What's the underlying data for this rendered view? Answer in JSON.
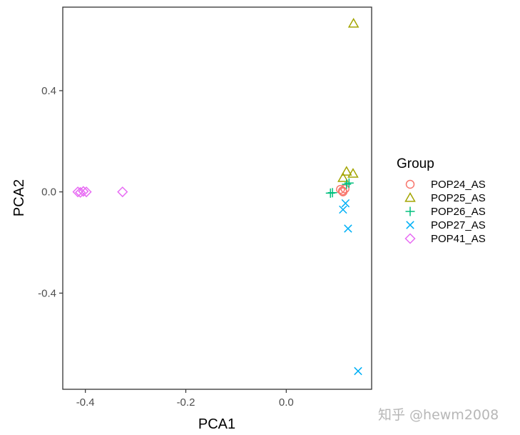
{
  "chart_data": {
    "type": "scatter",
    "xlabel": "PCA1",
    "ylabel": "PCA2",
    "xlim": [
      -0.445,
      0.17
    ],
    "ylim": [
      -0.78,
      0.73
    ],
    "xticks": [
      -0.4,
      -0.2,
      0.0
    ],
    "xtick_labels": [
      "-0.4",
      "-0.2",
      "0.0"
    ],
    "yticks": [
      -0.4,
      0.0,
      0.4
    ],
    "ytick_labels": [
      "-0.4",
      "0.0",
      "0.4"
    ],
    "grid": false,
    "legend": {
      "title": "Group",
      "placement": "right"
    },
    "series": [
      {
        "name": "POP24_AS",
        "shape": "circle",
        "color": "#F8766D",
        "points": [
          [
            0.108,
            0.01
          ],
          [
            0.112,
            0.004
          ],
          [
            0.117,
            0.012
          ],
          [
            0.113,
            0.0
          ]
        ]
      },
      {
        "name": "POP25_AS",
        "shape": "triangle",
        "color": "#A3A500",
        "points": [
          [
            0.134,
            0.665
          ],
          [
            0.12,
            0.08
          ],
          [
            0.133,
            0.072
          ],
          [
            0.113,
            0.055
          ]
        ]
      },
      {
        "name": "POP26_AS",
        "shape": "plus",
        "color": "#00BF7D",
        "points": [
          [
            0.088,
            -0.005
          ],
          [
            0.092,
            -0.003
          ],
          [
            0.12,
            0.03
          ],
          [
            0.125,
            0.035
          ]
        ]
      },
      {
        "name": "POP27_AS",
        "shape": "cross",
        "color": "#00B0F6",
        "points": [
          [
            0.143,
            -0.708
          ],
          [
            0.123,
            -0.145
          ],
          [
            0.113,
            -0.07
          ],
          [
            0.118,
            -0.045
          ]
        ]
      },
      {
        "name": "POP41_AS",
        "shape": "diamond",
        "color": "#E76BF3",
        "points": [
          [
            -0.415,
            0.0
          ],
          [
            -0.41,
            -0.002
          ],
          [
            -0.404,
            0.002
          ],
          [
            -0.398,
            0.0
          ],
          [
            -0.326,
            0.0
          ]
        ]
      }
    ]
  },
  "watermark": "知乎 @hewm2008"
}
